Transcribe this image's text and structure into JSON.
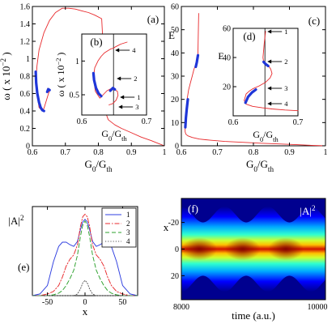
{
  "colors": {
    "thin_curve": "#e8292c",
    "thick_segment": "#1f36d8",
    "frame": "#000000",
    "series": [
      "#2f3fe0",
      "#e8292c",
      "#2ca02c",
      "#555555"
    ]
  },
  "chart_data": [
    {
      "id": "a",
      "type": "line",
      "panel_label": "(a)",
      "xlabel": "G0/Gth",
      "ylabel": "ω ( x 10-2 )",
      "xlim": [
        0.6,
        1.0
      ],
      "ylim": [
        0.0,
        1.6
      ],
      "xticks": [
        "0.6",
        "0.7",
        "0.8",
        "0.9",
        "1"
      ],
      "yticks": [
        "0",
        "0.2",
        "0.4",
        "0.6",
        "0.8",
        "1",
        "1.2",
        "1.4",
        "1.6"
      ],
      "series": [
        {
          "style": "thin",
          "x": [
            0.6512,
            0.6462,
            0.652,
            0.6432,
            0.635,
            0.63,
            0.62,
            0.61,
            0.614,
            0.62,
            0.635,
            0.652,
            0.67,
            0.69,
            0.71,
            0.73,
            0.75,
            0.77,
            0.79,
            0.81,
            0.815,
            0.817,
            0.82,
            0.823,
            0.825,
            0.83,
            0.85,
            0.87,
            0.9,
            0.93,
            0.96,
            0.98,
            1.0
          ],
          "y": [
            0.62,
            0.66,
            0.64,
            0.53,
            0.43,
            0.4,
            0.44,
            0.72,
            0.92,
            1.1,
            1.3,
            1.44,
            1.53,
            1.58,
            1.58,
            1.57,
            1.55,
            1.53,
            1.5,
            1.46,
            1.1,
            0.8,
            0.5,
            0.4,
            0.35,
            0.3,
            0.24,
            0.2,
            0.15,
            0.1,
            0.06,
            0.03,
            0.0
          ]
        },
        {
          "style": "thick",
          "x": [
            0.61,
            0.6115,
            0.615,
            0.62,
            0.625,
            0.63,
            0.635
          ],
          "y": [
            0.85,
            0.72,
            0.6,
            0.5,
            0.44,
            0.41,
            0.4
          ]
        },
        {
          "style": "thick",
          "x": [
            0.645,
            0.648,
            0.652
          ],
          "y": [
            0.62,
            0.65,
            0.64
          ]
        }
      ]
    },
    {
      "id": "b",
      "type": "line",
      "panel_label": "(b)",
      "inset": true,
      "xlabel": "G0/Gth",
      "ylabel": "ω ( x 10-2 )",
      "xlim": [
        0.6,
        0.7
      ],
      "ylim": [
        0.2,
        1.4
      ],
      "xticks": [
        "0.6",
        "0.7"
      ],
      "yticks": [
        "0.5",
        "1"
      ],
      "vline_x": 0.649,
      "series": [
        {
          "style": "thin",
          "x": [
            0.642,
            0.648,
            0.653,
            0.656,
            0.655,
            0.65,
            0.645,
            0.639,
            0.633,
            0.628,
            0.621,
            0.618,
            0.62,
            0.625,
            0.63,
            0.635,
            0.64,
            0.645,
            0.649,
            0.652,
            0.656,
            0.66,
            0.67
          ],
          "y": [
            0.35,
            0.37,
            0.42,
            0.49,
            0.55,
            0.58,
            0.59,
            0.56,
            0.5,
            0.45,
            0.55,
            0.75,
            0.9,
            1.0,
            1.07,
            1.12,
            1.15,
            1.18,
            1.19,
            1.21,
            1.23,
            1.25,
            1.28
          ]
        },
        {
          "style": "thick",
          "x": [
            0.618,
            0.619,
            0.622,
            0.626,
            0.63
          ],
          "y": [
            0.82,
            0.72,
            0.6,
            0.52,
            0.48
          ]
        },
        {
          "style": "thick",
          "x": [
            0.644,
            0.648,
            0.651
          ],
          "y": [
            0.56,
            0.6,
            0.58
          ]
        }
      ],
      "annotations": [
        {
          "text": "4",
          "x": 0.649,
          "y": 1.19
        },
        {
          "text": "2",
          "x": 0.649,
          "y": 0.59
        },
        {
          "text": "1",
          "x": 0.649,
          "y": 0.43
        },
        {
          "text": "3",
          "x": 0.649,
          "y": 0.36
        }
      ]
    },
    {
      "id": "c",
      "type": "line",
      "panel_label": "(c)",
      "xlabel": "G0/Gth",
      "ylabel": "E",
      "xlim": [
        0.6,
        1.0
      ],
      "ylim": [
        0,
        60
      ],
      "xticks": [
        "0.6",
        "0.7",
        "0.8",
        "0.9",
        "1"
      ],
      "yticks": [
        "0",
        "10",
        "20",
        "30",
        "40",
        "50",
        "60"
      ],
      "series": [
        {
          "style": "thin",
          "x": [
            0.648,
            0.647,
            0.646,
            0.644,
            0.64,
            0.635,
            0.63,
            0.625,
            0.62,
            0.616,
            0.613,
            0.611,
            0.61,
            0.6105,
            0.6125,
            0.618,
            0.63,
            0.65,
            0.68,
            0.72,
            0.77,
            0.82,
            0.87,
            0.92,
            0.96,
            1.0
          ],
          "y": [
            57.0,
            48.0,
            40.0,
            36.0,
            35.0,
            33.0,
            30.0,
            27.0,
            24.0,
            20.0,
            15.0,
            11.0,
            8.0,
            6.0,
            5.0,
            4.3,
            3.6,
            2.9,
            2.4,
            1.9,
            1.5,
            1.1,
            0.8,
            0.5,
            0.2,
            0.0
          ]
        },
        {
          "style": "thick",
          "x": [
            0.64,
            0.643,
            0.646
          ],
          "y": [
            34.0,
            36.0,
            39.0
          ]
        },
        {
          "style": "thick",
          "x": [
            0.611,
            0.6125,
            0.615,
            0.618
          ],
          "y": [
            8.0,
            12.0,
            16.0,
            20.0
          ]
        }
      ]
    },
    {
      "id": "d",
      "type": "line",
      "panel_label": "(d)",
      "inset": true,
      "xlabel": "G0/Gth",
      "ylabel": "E",
      "xlim": [
        0.6,
        0.7
      ],
      "ylim": [
        0,
        60
      ],
      "xticks": [
        "0.6",
        "0.7"
      ],
      "yticks": [
        "20",
        "40",
        "60"
      ],
      "vline_x": 0.649,
      "series": [
        {
          "style": "thin",
          "x": [
            0.65,
            0.648,
            0.646,
            0.647,
            0.65,
            0.655,
            0.658,
            0.66,
            0.657,
            0.65,
            0.64,
            0.63,
            0.625,
            0.62,
            0.617,
            0.62,
            0.63,
            0.645,
            0.66,
            0.68,
            0.7
          ],
          "y": [
            58.0,
            50.0,
            40.0,
            37.0,
            35.5,
            34.0,
            32.0,
            29.0,
            26.0,
            23.0,
            20.5,
            18.5,
            17.0,
            15.0,
            10.5,
            8.0,
            6.5,
            5.5,
            4.7,
            4.0,
            3.5
          ]
        },
        {
          "style": "thick",
          "x": [
            0.647,
            0.65,
            0.654
          ],
          "y": [
            37.0,
            35.5,
            34.2
          ]
        },
        {
          "style": "thick",
          "x": [
            0.619,
            0.623,
            0.629,
            0.635
          ],
          "y": [
            9.0,
            13.0,
            16.0,
            18.0
          ]
        }
      ],
      "annotations": [
        {
          "text": "1",
          "x": 0.649,
          "y": 57
        },
        {
          "text": "2",
          "x": 0.649,
          "y": 36
        },
        {
          "text": "3",
          "x": 0.649,
          "y": 23
        },
        {
          "text": "4",
          "x": 0.649,
          "y": 9
        }
      ]
    },
    {
      "id": "e",
      "type": "line",
      "panel_label": "(e)",
      "xlabel": "x",
      "ylabel": "|A|2",
      "xlim": [
        -70,
        70
      ],
      "ylim": [
        0,
        1.05
      ],
      "xticks": [
        "-50",
        "0",
        "50"
      ],
      "legend_position": "top-right",
      "legend": [
        "1",
        "2",
        "3",
        "4"
      ],
      "x": [
        -70,
        -60,
        -50,
        -42,
        -35,
        -30,
        -25,
        -20,
        -15,
        -10,
        -6,
        -3,
        0,
        3,
        6,
        10,
        15,
        20,
        25,
        30,
        35,
        42,
        50,
        60,
        70
      ],
      "series": [
        {
          "name": "1",
          "style": "solid",
          "values": [
            0.0,
            0.02,
            0.12,
            0.4,
            0.58,
            0.63,
            0.63,
            0.6,
            0.58,
            0.64,
            0.78,
            0.87,
            0.9,
            0.87,
            0.78,
            0.64,
            0.58,
            0.6,
            0.63,
            0.63,
            0.58,
            0.4,
            0.12,
            0.02,
            0.0
          ]
        },
        {
          "name": "2",
          "style": "dashdot",
          "values": [
            0.0,
            0.0,
            0.02,
            0.05,
            0.12,
            0.22,
            0.35,
            0.43,
            0.48,
            0.6,
            0.82,
            0.93,
            0.96,
            0.93,
            0.82,
            0.6,
            0.48,
            0.43,
            0.35,
            0.22,
            0.12,
            0.05,
            0.02,
            0.0,
            0.0
          ]
        },
        {
          "name": "3",
          "style": "dashed",
          "values": [
            0.0,
            0.0,
            0.0,
            0.01,
            0.03,
            0.06,
            0.12,
            0.2,
            0.3,
            0.48,
            0.7,
            0.83,
            0.88,
            0.83,
            0.7,
            0.48,
            0.3,
            0.2,
            0.12,
            0.06,
            0.03,
            0.01,
            0.0,
            0.0,
            0.0
          ]
        },
        {
          "name": "4",
          "style": "dotted",
          "values": [
            0.0,
            0.0,
            0.0,
            0.0,
            0.0,
            0.0,
            0.0,
            0.0,
            0.0,
            0.02,
            0.08,
            0.15,
            0.18,
            0.15,
            0.08,
            0.02,
            0.0,
            0.0,
            0.0,
            0.0,
            0.0,
            0.0,
            0.0,
            0.0,
            0.0
          ]
        }
      ]
    },
    {
      "id": "f",
      "type": "heatmap",
      "panel_label": "(f)",
      "title": "|A|2",
      "xlabel": "time (a.u.)",
      "ylabel": "x",
      "xlim": [
        8000,
        10000
      ],
      "ylim": [
        -38,
        38
      ],
      "xticks": [
        "8000",
        "10000"
      ],
      "yticks": [
        "-20",
        "0",
        "20"
      ],
      "colormap": "jet",
      "peak_times": [
        8250,
        8850,
        9450
      ],
      "valley_times": [
        8000,
        8550,
        9150,
        9750
      ]
    }
  ]
}
